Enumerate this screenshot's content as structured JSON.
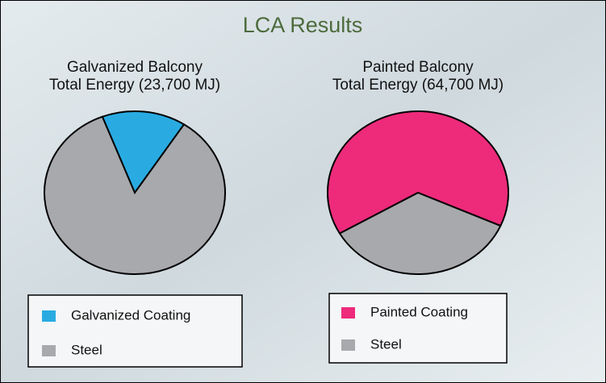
{
  "title": "LCA Results",
  "chart_data": [
    {
      "type": "pie",
      "title": "Galvanized Balcony",
      "subtitle": "Total Energy (23,700 MJ)",
      "categories": [
        "Galvanized Coating",
        "Steel"
      ],
      "values": [
        15,
        85
      ],
      "colors": [
        "#29abe2",
        "#a7a9ac"
      ]
    },
    {
      "type": "pie",
      "title": "Painted Balcony",
      "subtitle": "Total Energy (64,700 MJ)",
      "categories": [
        "Painted Coating",
        "Steel"
      ],
      "values": [
        65,
        35
      ],
      "colors": [
        "#ee2a7b",
        "#a7a9ac"
      ]
    }
  ]
}
